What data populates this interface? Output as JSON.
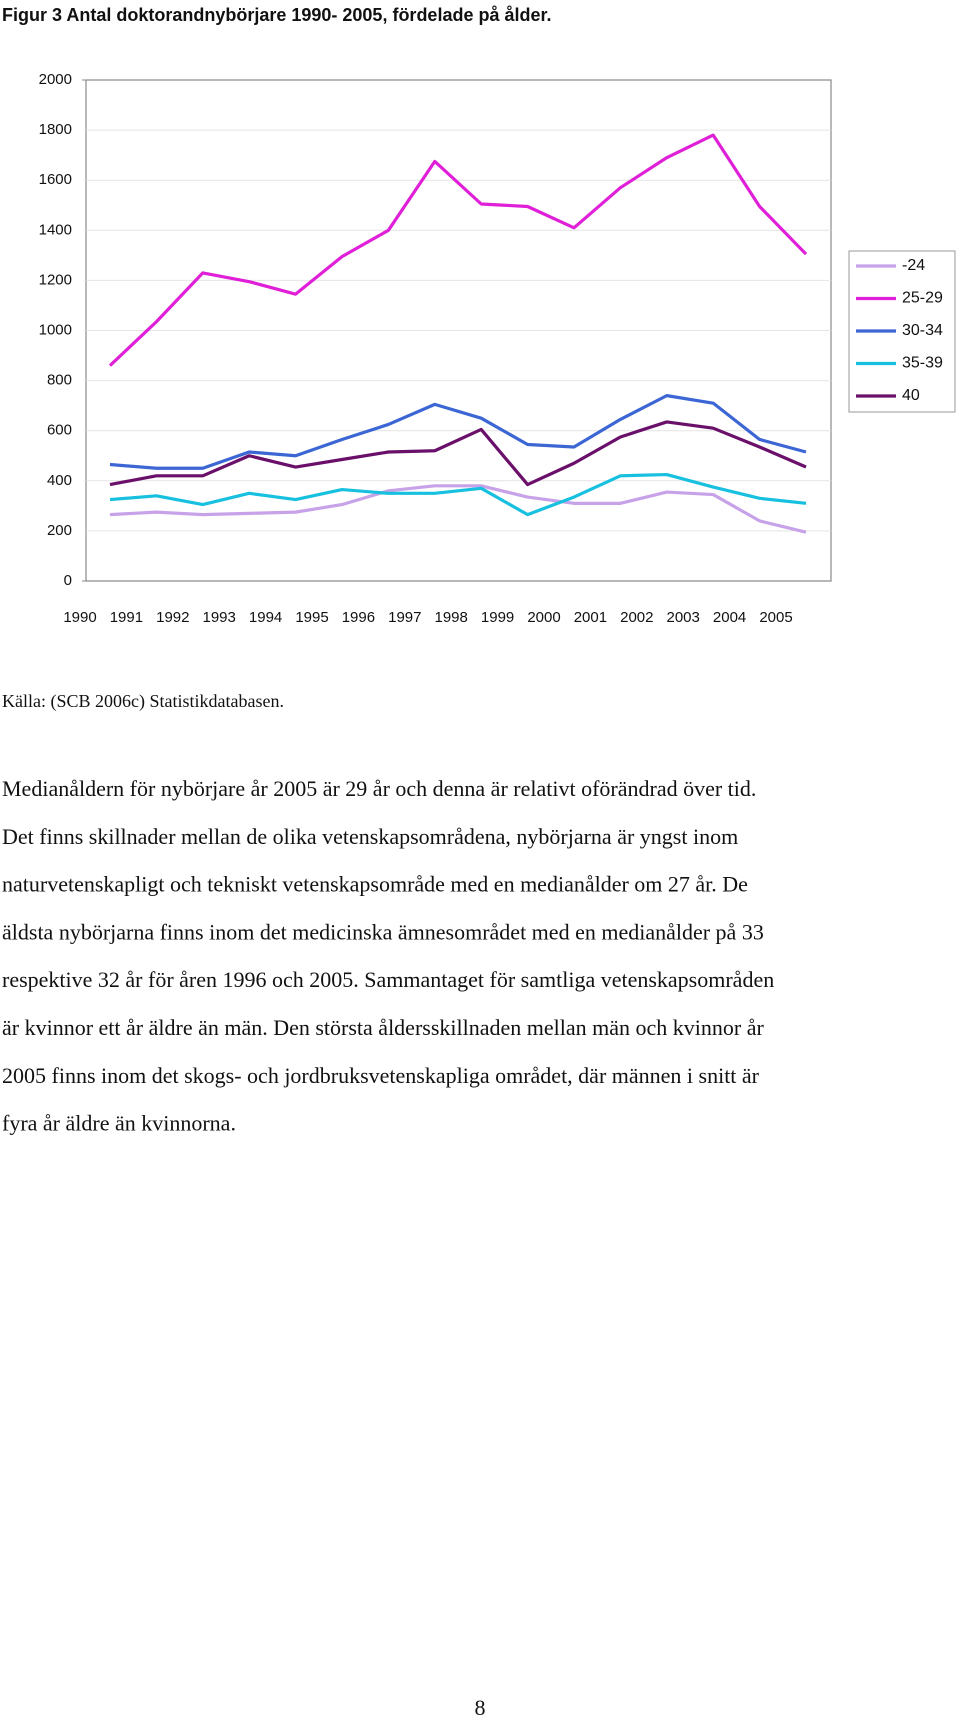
{
  "title": "Figur 3 Antal doktorandnybörjare 1990- 2005, fördelade på ålder.",
  "chart_data": {
    "type": "line",
    "categories": [
      "1990",
      "1991",
      "1992",
      "1993",
      "1994",
      "1995",
      "1996",
      "1997",
      "1998",
      "1999",
      "2000",
      "2001",
      "2002",
      "2003",
      "2004",
      "2005"
    ],
    "series": [
      {
        "name": "-24",
        "color": "#c8a2e8",
        "values": [
          265,
          275,
          265,
          270,
          275,
          305,
          360,
          380,
          380,
          335,
          310,
          310,
          355,
          345,
          240,
          195
        ]
      },
      {
        "name": "25-29",
        "color": "#e020d8",
        "values": [
          860,
          1035,
          1230,
          1195,
          1145,
          1295,
          1400,
          1675,
          1505,
          1495,
          1410,
          1570,
          1690,
          1780,
          1495,
          1305
        ]
      },
      {
        "name": "30-34",
        "color": "#3b66d4",
        "values": [
          465,
          450,
          450,
          515,
          500,
          565,
          625,
          705,
          650,
          545,
          535,
          645,
          740,
          710,
          565,
          515
        ]
      },
      {
        "name": "35-39",
        "color": "#18c0e0",
        "values": [
          325,
          340,
          305,
          350,
          325,
          365,
          350,
          350,
          370,
          265,
          335,
          420,
          425,
          375,
          330,
          310
        ]
      },
      {
        "name": "40",
        "color": "#6a0f6a",
        "values": [
          385,
          420,
          420,
          500,
          455,
          485,
          515,
          520,
          605,
          385,
          470,
          575,
          635,
          610,
          535,
          455
        ]
      }
    ],
    "ylim": [
      0,
      2000
    ],
    "yticks": [
      0,
      200,
      400,
      600,
      800,
      1000,
      1200,
      1400,
      1600,
      1800,
      2000
    ],
    "grid": true,
    "legend": "right"
  },
  "source": "Källa: (SCB 2006c) Statistikdatabasen.",
  "paragraph_lines": [
    "Medianåldern för nybörjare år 2005 är 29 år och denna är relativt oförändrad över tid.",
    "Det finns skillnader mellan de olika vetenskapsområdena, nybörjarna är yngst inom",
    "naturvetenskapligt och tekniskt vetenskapsområde med en medianålder om 27 år. De",
    "äldsta nybörjarna finns inom det medicinska ämnesområdet med en medianålder på 33",
    "respektive 32 år för åren 1996 och 2005. Sammantaget för samtliga vetenskapsområden",
    "är kvinnor ett år äldre än män. Den största åldersskillnaden mellan män och kvinnor år",
    "2005 finns inom det skogs- och jordbruksvetenskapliga området, där männen i snitt är",
    "fyra år äldre än kvinnorna."
  ],
  "page_number": "8"
}
